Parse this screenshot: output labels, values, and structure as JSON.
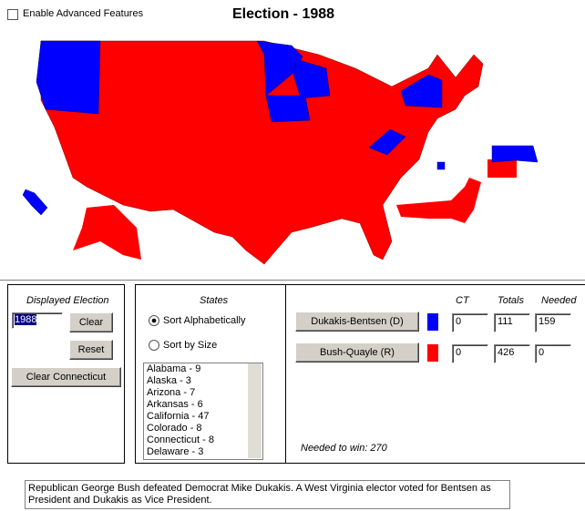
{
  "header": {
    "checkbox_label": "Enable Advanced Features",
    "title": "Election - 1988"
  },
  "displayed_election": {
    "label": "Displayed Election",
    "selected": "1988",
    "clear": "Clear",
    "reset": "Reset",
    "clear_connecticut": "Clear Connecticut"
  },
  "states": {
    "label": "States",
    "sort_options": [
      "Sort Alphabetically",
      "Sort by Size"
    ],
    "list": [
      "Alabama - 9",
      "Alaska - 3",
      "Arizona - 7",
      "Arkansas - 6",
      "California - 47",
      "Colorado - 8",
      "Connecticut - 8",
      "Delaware - 3"
    ]
  },
  "results": {
    "headers": [
      "CT",
      "Totals",
      "Needed"
    ],
    "rows": [
      {
        "candidate": "Dukakis-Bentsen (D)",
        "ct": 0,
        "total": 111,
        "needed": 159
      },
      {
        "candidate": "Bush-Quayle (R)",
        "ct": 0,
        "total": 426,
        "needed": 0
      }
    ],
    "needed_to_win": "Needed to win: 270"
  },
  "description": "Republican George Bush defeated Democrat Mike Dukakis. A West Virginia elector voted for Bentsen as President and Dukakis as Vice President."
}
